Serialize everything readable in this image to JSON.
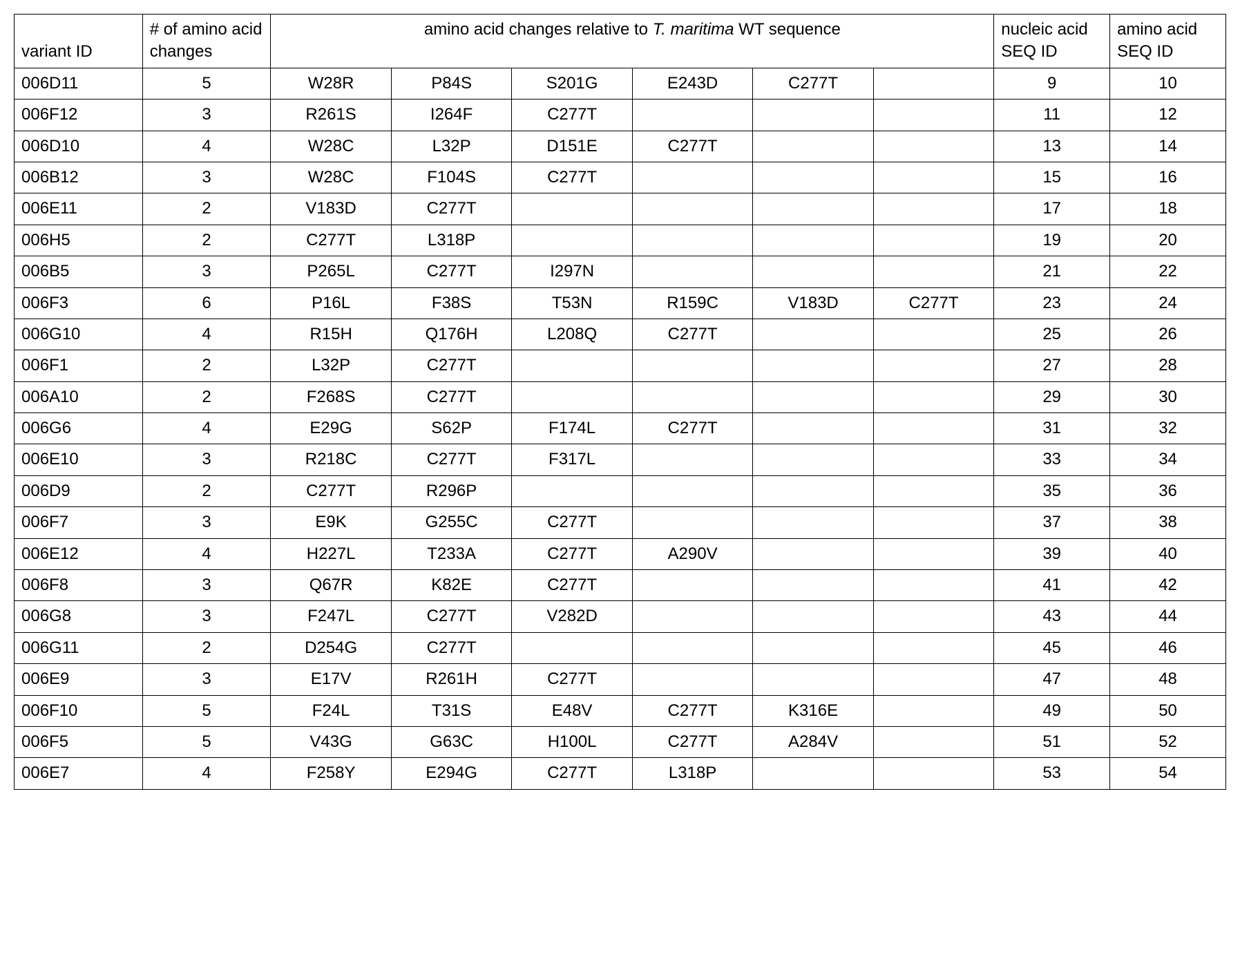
{
  "table": {
    "type": "table",
    "background_color": "#ffffff",
    "border_color": "#000000",
    "font_family": "Arial",
    "header_fontsize": 24,
    "cell_fontsize": 24,
    "columns": [
      {
        "key": "variant",
        "label": "variant ID",
        "align": "left",
        "width_pct": 8.3
      },
      {
        "key": "changes",
        "label": "# of amino acid changes",
        "align": "center",
        "width_pct": 8.3
      },
      {
        "key": "aa1",
        "label_group": "aa_header",
        "align": "center",
        "width_pct": 7.8
      },
      {
        "key": "aa2",
        "label_group": "aa_header",
        "align": "center",
        "width_pct": 7.8
      },
      {
        "key": "aa3",
        "label_group": "aa_header",
        "align": "center",
        "width_pct": 7.8
      },
      {
        "key": "aa4",
        "label_group": "aa_header",
        "align": "center",
        "width_pct": 7.8
      },
      {
        "key": "aa5",
        "label_group": "aa_header",
        "align": "center",
        "width_pct": 7.8
      },
      {
        "key": "aa6",
        "label_group": "aa_header",
        "align": "center",
        "width_pct": 7.8
      },
      {
        "key": "nucleic",
        "label": "nucleic acid SEQ ID",
        "align": "center",
        "width_pct": 7.5
      },
      {
        "key": "amino",
        "label": "amino acid SEQ ID",
        "align": "center",
        "width_pct": 7.5
      }
    ],
    "aa_header_prefix": "amino acid changes relative to ",
    "aa_header_italic": "T. maritima",
    "aa_header_suffix": " WT sequence",
    "rows": [
      {
        "variant": "006D11",
        "changes": "5",
        "aa": [
          "W28R",
          "P84S",
          "S201G",
          "E243D",
          "C277T",
          ""
        ],
        "nucleic": "9",
        "amino": "10"
      },
      {
        "variant": "006F12",
        "changes": "3",
        "aa": [
          "R261S",
          "I264F",
          "C277T",
          "",
          "",
          ""
        ],
        "nucleic": "11",
        "amino": "12"
      },
      {
        "variant": "006D10",
        "changes": "4",
        "aa": [
          "W28C",
          "L32P",
          "D151E",
          "C277T",
          "",
          ""
        ],
        "nucleic": "13",
        "amino": "14"
      },
      {
        "variant": "006B12",
        "changes": "3",
        "aa": [
          "W28C",
          "F104S",
          "C277T",
          "",
          "",
          ""
        ],
        "nucleic": "15",
        "amino": "16"
      },
      {
        "variant": "006E11",
        "changes": "2",
        "aa": [
          "V183D",
          "C277T",
          "",
          "",
          "",
          ""
        ],
        "nucleic": "17",
        "amino": "18"
      },
      {
        "variant": "006H5",
        "changes": "2",
        "aa": [
          "C277T",
          "L318P",
          "",
          "",
          "",
          ""
        ],
        "nucleic": "19",
        "amino": "20"
      },
      {
        "variant": "006B5",
        "changes": "3",
        "aa": [
          "P265L",
          "C277T",
          "I297N",
          "",
          "",
          ""
        ],
        "nucleic": "21",
        "amino": "22"
      },
      {
        "variant": "006F3",
        "changes": "6",
        "aa": [
          "P16L",
          "F38S",
          "T53N",
          "R159C",
          "V183D",
          "C277T"
        ],
        "nucleic": "23",
        "amino": "24"
      },
      {
        "variant": "006G10",
        "changes": "4",
        "aa": [
          "R15H",
          "Q176H",
          "L208Q",
          "C277T",
          "",
          ""
        ],
        "nucleic": "25",
        "amino": "26"
      },
      {
        "variant": "006F1",
        "changes": "2",
        "aa": [
          "L32P",
          "C277T",
          "",
          "",
          "",
          ""
        ],
        "nucleic": "27",
        "amino": "28"
      },
      {
        "variant": "006A10",
        "changes": "2",
        "aa": [
          "F268S",
          "C277T",
          "",
          "",
          "",
          ""
        ],
        "nucleic": "29",
        "amino": "30"
      },
      {
        "variant": "006G6",
        "changes": "4",
        "aa": [
          "E29G",
          "S62P",
          "F174L",
          "C277T",
          "",
          ""
        ],
        "nucleic": "31",
        "amino": "32"
      },
      {
        "variant": "006E10",
        "changes": "3",
        "aa": [
          "R218C",
          "C277T",
          "F317L",
          "",
          "",
          ""
        ],
        "nucleic": "33",
        "amino": "34"
      },
      {
        "variant": "006D9",
        "changes": "2",
        "aa": [
          "C277T",
          "R296P",
          "",
          "",
          "",
          ""
        ],
        "nucleic": "35",
        "amino": "36"
      },
      {
        "variant": "006F7",
        "changes": "3",
        "aa": [
          "E9K",
          "G255C",
          "C277T",
          "",
          "",
          ""
        ],
        "nucleic": "37",
        "amino": "38"
      },
      {
        "variant": "006E12",
        "changes": "4",
        "aa": [
          "H227L",
          "T233A",
          "C277T",
          "A290V",
          "",
          ""
        ],
        "nucleic": "39",
        "amino": "40"
      },
      {
        "variant": "006F8",
        "changes": "3",
        "aa": [
          "Q67R",
          "K82E",
          "C277T",
          "",
          "",
          ""
        ],
        "nucleic": "41",
        "amino": "42"
      },
      {
        "variant": "006G8",
        "changes": "3",
        "aa": [
          "F247L",
          "C277T",
          "V282D",
          "",
          "",
          ""
        ],
        "nucleic": "43",
        "amino": "44"
      },
      {
        "variant": "006G11",
        "changes": "2",
        "aa": [
          "D254G",
          "C277T",
          "",
          "",
          "",
          ""
        ],
        "nucleic": "45",
        "amino": "46"
      },
      {
        "variant": "006E9",
        "changes": "3",
        "aa": [
          "E17V",
          "R261H",
          "C277T",
          "",
          "",
          ""
        ],
        "nucleic": "47",
        "amino": "48"
      },
      {
        "variant": "006F10",
        "changes": "5",
        "aa": [
          "F24L",
          "T31S",
          "E48V",
          "C277T",
          "K316E",
          ""
        ],
        "nucleic": "49",
        "amino": "50"
      },
      {
        "variant": "006F5",
        "changes": "5",
        "aa": [
          "V43G",
          "G63C",
          "H100L",
          "C277T",
          "A284V",
          ""
        ],
        "nucleic": "51",
        "amino": "52"
      },
      {
        "variant": "006E7",
        "changes": "4",
        "aa": [
          "F258Y",
          "E294G",
          "C277T",
          "L318P",
          "",
          ""
        ],
        "nucleic": "53",
        "amino": "54"
      }
    ]
  }
}
